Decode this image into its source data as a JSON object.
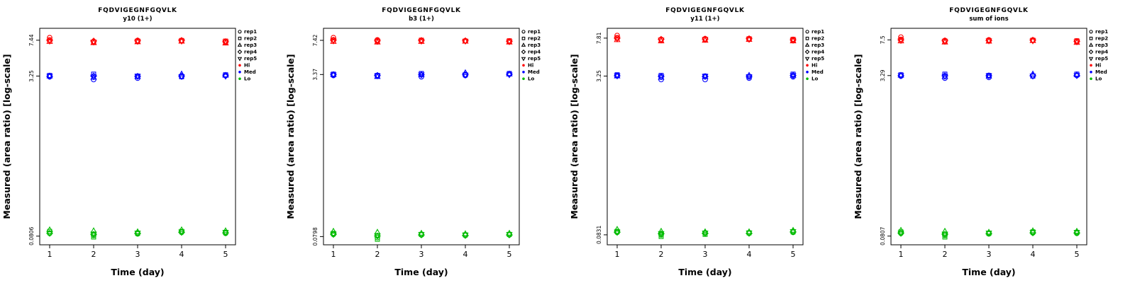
{
  "page": {
    "background": "#ffffff"
  },
  "legend": {
    "reps": [
      {
        "label": "rep1",
        "symbol": "circle"
      },
      {
        "label": "rep2",
        "symbol": "square"
      },
      {
        "label": "rep3",
        "symbol": "triangle-up"
      },
      {
        "label": "rep4",
        "symbol": "diamond"
      },
      {
        "label": "rep5",
        "symbol": "triangle-down"
      }
    ],
    "levels": [
      {
        "label": "Hi",
        "color": "#ff0000"
      },
      {
        "label": "Med",
        "color": "#0000ff"
      },
      {
        "label": "Lo",
        "color": "#00bb00"
      }
    ]
  },
  "chart_data": [
    {
      "type": "scatter",
      "title": "FQDVIGEGNFGQVLK",
      "subtitle": "y10 (1+)",
      "xlabel": "Time (day)",
      "ylabel": "Measured (area ratio) [log-scale]",
      "x": [
        1,
        2,
        3,
        4,
        5
      ],
      "yscale": "log",
      "ylim": [
        0.066,
        9.8
      ],
      "ytick_labels": [
        "7.44",
        "3.25",
        "0.0806"
      ],
      "ytick_values": [
        7.44,
        3.25,
        0.0806
      ],
      "series": [
        {
          "level": "Hi",
          "color": "#ff0000",
          "reps": [
            {
              "name": "rep1",
              "values": [
                7.9,
                7.2,
                7.4,
                7.4,
                7.1
              ]
            },
            {
              "name": "rep2",
              "values": [
                7.5,
                7.1,
                7.3,
                7.4,
                7.3
              ]
            },
            {
              "name": "rep3",
              "values": [
                7.2,
                7.0,
                7.15,
                7.25,
                6.95
              ]
            },
            {
              "name": "rep4",
              "values": [
                7.4,
                7.3,
                7.35,
                7.4,
                7.2
              ]
            },
            {
              "name": "rep5",
              "values": [
                7.3,
                7.15,
                7.25,
                7.3,
                7.15
              ]
            }
          ]
        },
        {
          "level": "Med",
          "color": "#0000ff",
          "reps": [
            {
              "name": "rep1",
              "values": [
                3.2,
                3.0,
                3.1,
                3.2,
                3.3
              ]
            },
            {
              "name": "rep2",
              "values": [
                3.3,
                3.4,
                3.25,
                3.2,
                3.35
              ]
            },
            {
              "name": "rep3",
              "values": [
                3.25,
                3.15,
                3.2,
                3.4,
                3.3
              ]
            },
            {
              "name": "rep4",
              "values": [
                3.23,
                3.25,
                3.23,
                3.25,
                3.27
              ]
            },
            {
              "name": "rep5",
              "values": [
                3.25,
                3.2,
                3.25,
                3.23,
                3.25
              ]
            }
          ]
        },
        {
          "level": "Lo",
          "color": "#00bb00",
          "reps": [
            {
              "name": "rep1",
              "values": [
                0.086,
                0.082,
                0.085,
                0.088,
                0.086
              ]
            },
            {
              "name": "rep2",
              "values": [
                0.09,
                0.079,
                0.086,
                0.09,
                0.088
              ]
            },
            {
              "name": "rep3",
              "values": [
                0.093,
                0.091,
                0.089,
                0.093,
                0.091
              ]
            },
            {
              "name": "rep4",
              "values": [
                0.086,
                0.084,
                0.086,
                0.088,
                0.087
              ]
            },
            {
              "name": "rep5",
              "values": [
                0.087,
                0.085,
                0.087,
                0.089,
                0.088
              ]
            }
          ]
        }
      ]
    },
    {
      "type": "scatter",
      "title": "FQDVIGEGNFGQVLK",
      "subtitle": "b3 (1+)",
      "xlabel": "Time (day)",
      "ylabel": "Measured (area ratio) [log-scale]",
      "x": [
        1,
        2,
        3,
        4,
        5
      ],
      "yscale": "log",
      "ylim": [
        0.066,
        9.8
      ],
      "ytick_labels": [
        "7.42",
        "3.37",
        "0.0798"
      ],
      "ytick_values": [
        7.42,
        3.37,
        0.0798
      ],
      "series": [
        {
          "level": "Hi",
          "color": "#ff0000",
          "reps": [
            {
              "name": "rep1",
              "values": [
                7.9,
                7.5,
                7.4,
                7.35,
                7.2
              ]
            },
            {
              "name": "rep2",
              "values": [
                7.5,
                7.3,
                7.45,
                7.3,
                7.35
              ]
            },
            {
              "name": "rep3",
              "values": [
                7.2,
                7.1,
                7.2,
                7.25,
                7.1
              ]
            },
            {
              "name": "rep4",
              "values": [
                7.45,
                7.35,
                7.4,
                7.35,
                7.25
              ]
            },
            {
              "name": "rep5",
              "values": [
                7.35,
                7.25,
                7.3,
                7.3,
                7.2
              ]
            }
          ]
        },
        {
          "level": "Med",
          "color": "#0000ff",
          "reps": [
            {
              "name": "rep1",
              "values": [
                3.3,
                3.25,
                3.2,
                3.3,
                3.4
              ]
            },
            {
              "name": "rep2",
              "values": [
                3.4,
                3.3,
                3.45,
                3.35,
                3.45
              ]
            },
            {
              "name": "rep3",
              "values": [
                3.35,
                3.2,
                3.35,
                3.5,
                3.4
              ]
            },
            {
              "name": "rep4",
              "values": [
                3.36,
                3.3,
                3.35,
                3.35,
                3.38
              ]
            },
            {
              "name": "rep5",
              "values": [
                3.35,
                3.28,
                3.36,
                3.33,
                3.36
              ]
            }
          ]
        },
        {
          "level": "Lo",
          "color": "#00bb00",
          "reps": [
            {
              "name": "rep1",
              "values": [
                0.084,
                0.078,
                0.083,
                0.082,
                0.083
              ]
            },
            {
              "name": "rep2",
              "values": [
                0.086,
                0.075,
                0.084,
                0.083,
                0.084
              ]
            },
            {
              "name": "rep3",
              "values": [
                0.09,
                0.088,
                0.086,
                0.085,
                0.086
              ]
            },
            {
              "name": "rep4",
              "values": [
                0.084,
                0.081,
                0.083,
                0.082,
                0.083
              ]
            },
            {
              "name": "rep5",
              "values": [
                0.085,
                0.082,
                0.084,
                0.083,
                0.084
              ]
            }
          ]
        }
      ]
    },
    {
      "type": "scatter",
      "title": "FQDVIGEGNFGQVLK",
      "subtitle": "y11 (1+)",
      "xlabel": "Time (day)",
      "ylabel": "Measured (area ratio) [log-scale]",
      "x": [
        1,
        2,
        3,
        4,
        5
      ],
      "yscale": "log",
      "ylim": [
        0.066,
        9.8
      ],
      "ytick_labels": [
        "7.81",
        "3.25",
        "0.0831"
      ],
      "ytick_values": [
        7.81,
        3.25,
        0.0831
      ],
      "series": [
        {
          "level": "Hi",
          "color": "#ff0000",
          "reps": [
            {
              "name": "rep1",
              "values": [
                8.3,
                7.6,
                7.7,
                7.6,
                7.4
              ]
            },
            {
              "name": "rep2",
              "values": [
                7.9,
                7.5,
                7.6,
                7.7,
                7.6
              ]
            },
            {
              "name": "rep3",
              "values": [
                7.5,
                7.3,
                7.4,
                7.55,
                7.3
              ]
            },
            {
              "name": "rep4",
              "values": [
                7.8,
                7.6,
                7.65,
                7.7,
                7.5
              ]
            },
            {
              "name": "rep5",
              "values": [
                7.7,
                7.5,
                7.6,
                7.6,
                7.45
              ]
            }
          ]
        },
        {
          "level": "Med",
          "color": "#0000ff",
          "reps": [
            {
              "name": "rep1",
              "values": [
                3.3,
                3.0,
                3.0,
                3.1,
                3.2
              ]
            },
            {
              "name": "rep2",
              "values": [
                3.35,
                3.3,
                3.25,
                3.2,
                3.4
              ]
            },
            {
              "name": "rep3",
              "values": [
                3.25,
                3.15,
                3.2,
                3.3,
                3.3
              ]
            },
            {
              "name": "rep4",
              "values": [
                3.27,
                3.22,
                3.22,
                3.25,
                3.3
              ]
            },
            {
              "name": "rep5",
              "values": [
                3.28,
                3.2,
                3.24,
                3.22,
                3.3
              ]
            }
          ]
        },
        {
          "level": "Lo",
          "color": "#00bb00",
          "reps": [
            {
              "name": "rep1",
              "values": [
                0.088,
                0.083,
                0.087,
                0.086,
                0.088
              ]
            },
            {
              "name": "rep2",
              "values": [
                0.09,
                0.08,
                0.084,
                0.087,
                0.089
              ]
            },
            {
              "name": "rep3",
              "values": [
                0.094,
                0.09,
                0.089,
                0.089,
                0.092
              ]
            },
            {
              "name": "rep4",
              "values": [
                0.088,
                0.085,
                0.086,
                0.086,
                0.089
              ]
            },
            {
              "name": "rep5",
              "values": [
                0.089,
                0.086,
                0.087,
                0.087,
                0.09
              ]
            }
          ]
        }
      ]
    },
    {
      "type": "scatter",
      "title": "FQDVIGEGNFGQVLK",
      "subtitle": "sum of ions",
      "xlabel": "Time (day)",
      "ylabel": "Measured (area ratio) [log-scale]",
      "x": [
        1,
        2,
        3,
        4,
        5
      ],
      "yscale": "log",
      "ylim": [
        0.066,
        9.8
      ],
      "ytick_labels": [
        "7.5",
        "3.29",
        "0.0807"
      ],
      "ytick_values": [
        7.5,
        3.29,
        0.0807
      ],
      "series": [
        {
          "level": "Hi",
          "color": "#ff0000",
          "reps": [
            {
              "name": "rep1",
              "values": [
                8.0,
                7.4,
                7.5,
                7.45,
                7.2
              ]
            },
            {
              "name": "rep2",
              "values": [
                7.6,
                7.3,
                7.4,
                7.45,
                7.35
              ]
            },
            {
              "name": "rep3",
              "values": [
                7.3,
                7.1,
                7.25,
                7.35,
                7.05
              ]
            },
            {
              "name": "rep4",
              "values": [
                7.5,
                7.35,
                7.4,
                7.45,
                7.25
              ]
            },
            {
              "name": "rep5",
              "values": [
                7.4,
                7.25,
                7.35,
                7.35,
                7.2
              ]
            }
          ]
        },
        {
          "level": "Med",
          "color": "#0000ff",
          "reps": [
            {
              "name": "rep1",
              "values": [
                3.25,
                3.1,
                3.15,
                3.25,
                3.3
              ]
            },
            {
              "name": "rep2",
              "values": [
                3.35,
                3.4,
                3.3,
                3.25,
                3.4
              ]
            },
            {
              "name": "rep3",
              "values": [
                3.3,
                3.2,
                3.25,
                3.4,
                3.35
              ]
            },
            {
              "name": "rep4",
              "values": [
                3.28,
                3.27,
                3.27,
                3.28,
                3.3
              ]
            },
            {
              "name": "rep5",
              "values": [
                3.29,
                3.24,
                3.28,
                3.26,
                3.3
              ]
            }
          ]
        },
        {
          "level": "Lo",
          "color": "#00bb00",
          "reps": [
            {
              "name": "rep1",
              "values": [
                0.086,
                0.082,
                0.085,
                0.087,
                0.086
              ]
            },
            {
              "name": "rep2",
              "values": [
                0.089,
                0.079,
                0.086,
                0.089,
                0.088
              ]
            },
            {
              "name": "rep3",
              "values": [
                0.092,
                0.09,
                0.088,
                0.091,
                0.09
              ]
            },
            {
              "name": "rep4",
              "values": [
                0.086,
                0.084,
                0.086,
                0.087,
                0.087
              ]
            },
            {
              "name": "rep5",
              "values": [
                0.087,
                0.085,
                0.087,
                0.088,
                0.088
              ]
            }
          ]
        }
      ]
    }
  ]
}
